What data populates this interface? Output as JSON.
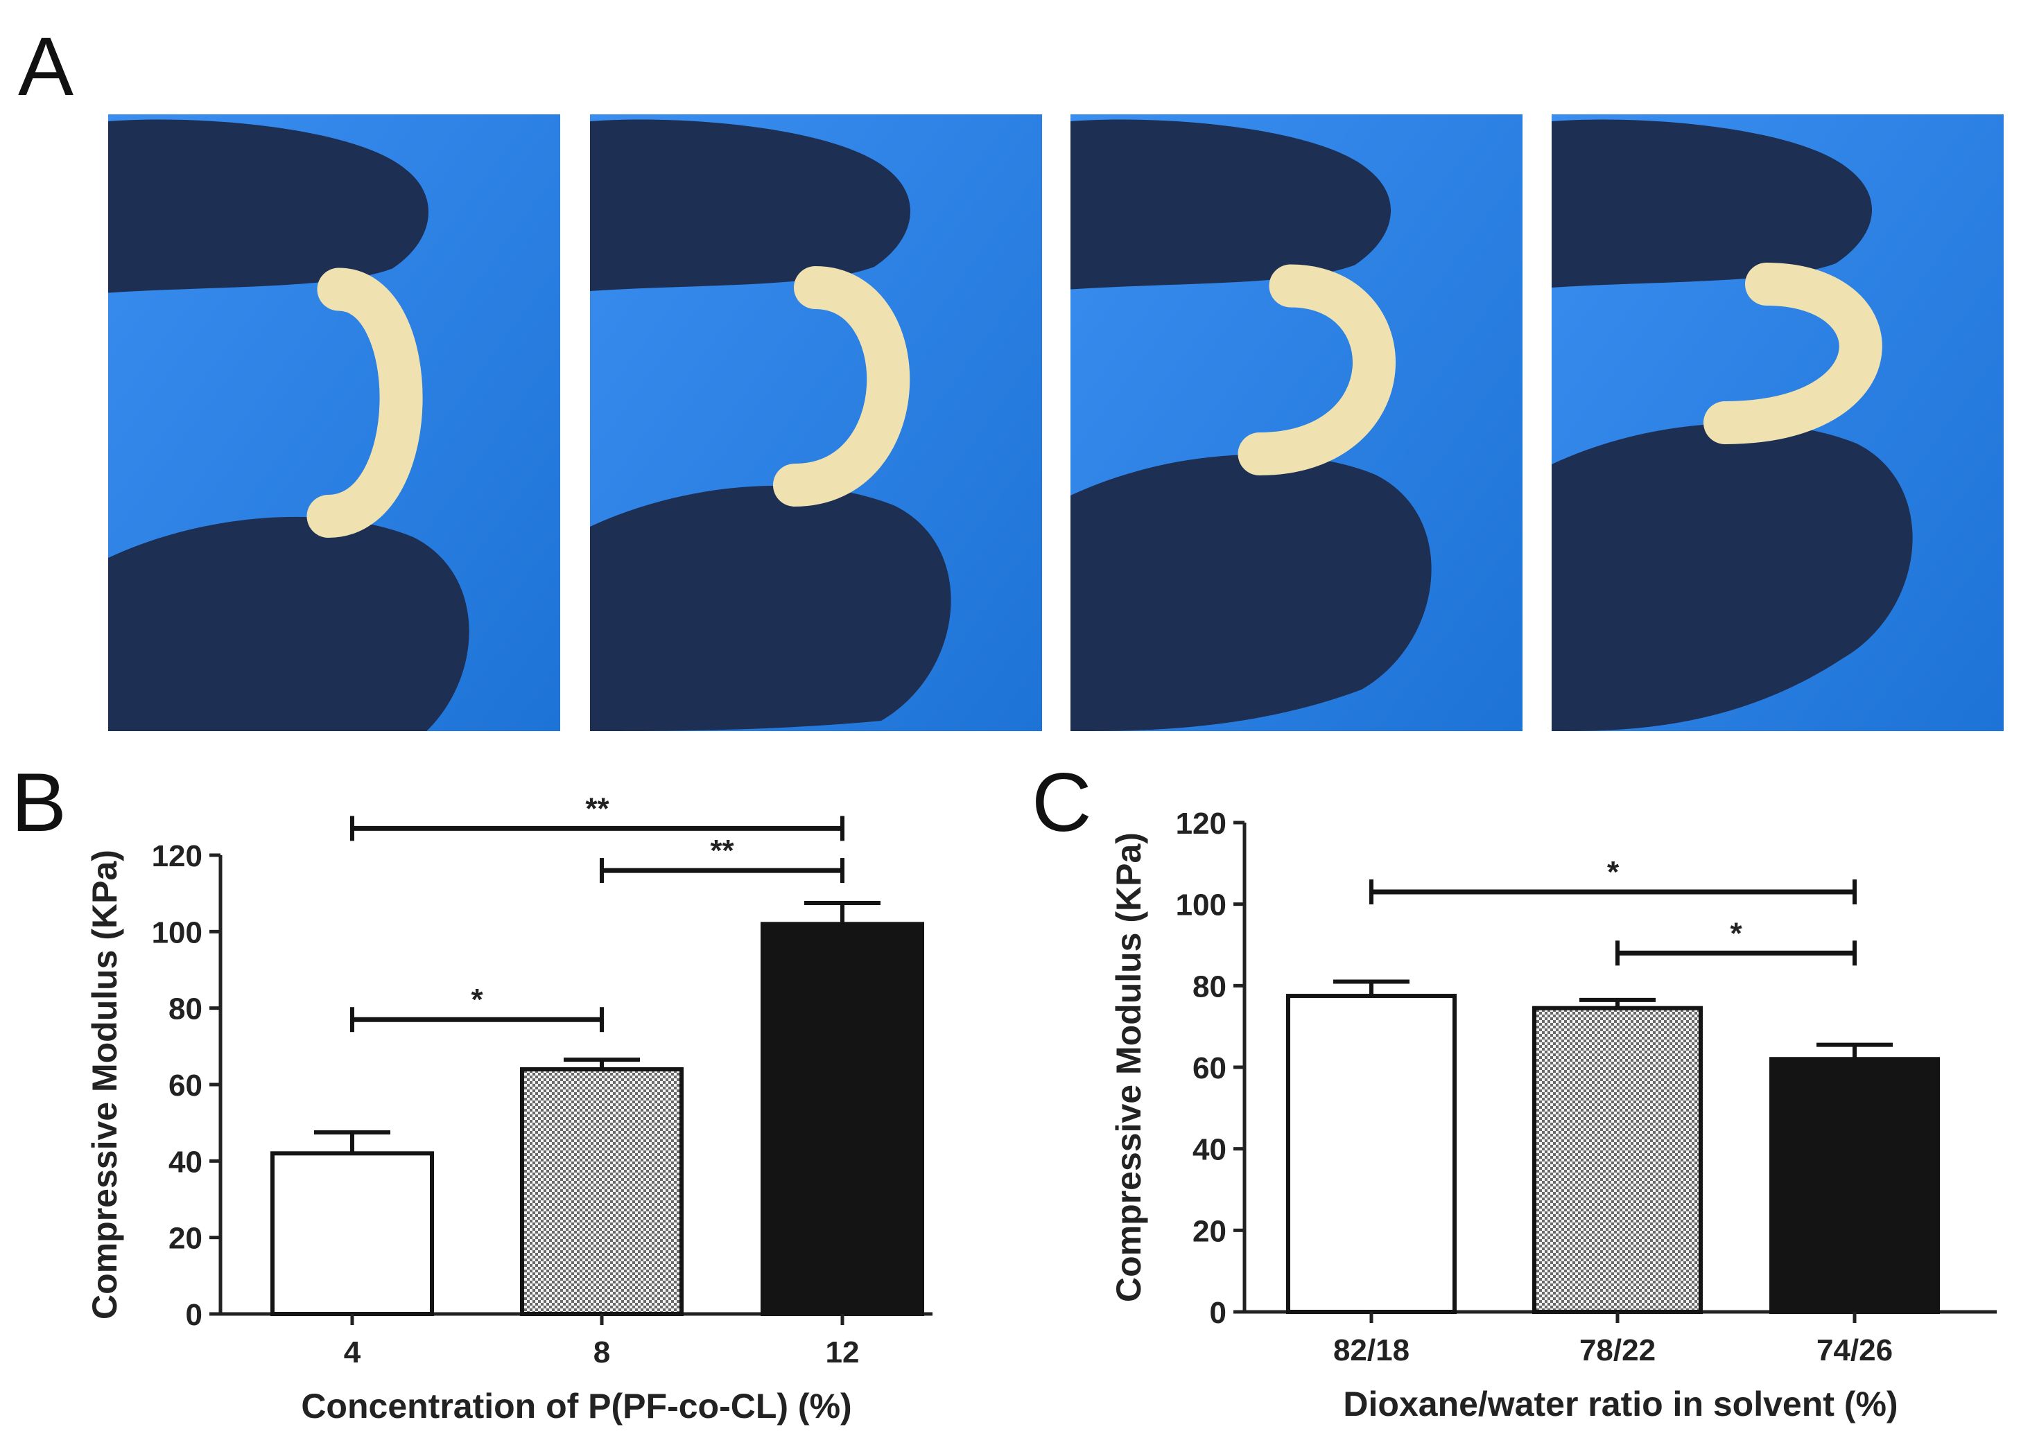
{
  "panels": {
    "a": "A",
    "b": "B",
    "c": "C"
  },
  "photos": [
    {
      "id": "photo-1",
      "bend": 0.25
    },
    {
      "id": "photo-2",
      "bend": 0.5
    },
    {
      "id": "photo-3",
      "bend": 0.75
    },
    {
      "id": "photo-4",
      "bend": 1.0
    }
  ],
  "colors": {
    "background_blue": "#1e73d6",
    "glove": "#1d2f52",
    "scaffold": "#efe2b0"
  },
  "chart_data": [
    {
      "type": "bar",
      "panel": "B",
      "categories": [
        "4",
        "8",
        "12"
      ],
      "values": [
        42,
        64,
        102
      ],
      "errors": [
        5.5,
        2.5,
        5.5
      ],
      "fills": [
        "white",
        "checker",
        "black"
      ],
      "xlabel": "Concentration of P(PF-co-CL)  (%)",
      "ylabel": "Compressive Modulus (KPa)",
      "ylim": [
        0,
        120
      ],
      "yticks": [
        0,
        20,
        40,
        60,
        80,
        100,
        120
      ],
      "significance": [
        {
          "from": 0,
          "to": 1,
          "y": 77,
          "label": "*"
        },
        {
          "from": 1,
          "to": 2,
          "y": 116,
          "label": "**"
        },
        {
          "from": 0,
          "to": 2,
          "y": 127,
          "label": "**"
        }
      ]
    },
    {
      "type": "bar",
      "panel": "C",
      "categories": [
        "82/18",
        "78/22",
        "74/26"
      ],
      "values": [
        77.5,
        74.5,
        62
      ],
      "errors": [
        3.5,
        2,
        3.5
      ],
      "fills": [
        "white",
        "checker",
        "black"
      ],
      "xlabel": "Dioxane/water ratio in solvent (%)",
      "ylabel": "Compressive Modulus (KPa)",
      "ylim": [
        0,
        120
      ],
      "yticks": [
        0,
        20,
        40,
        60,
        80,
        100,
        120
      ],
      "significance": [
        {
          "from": 1,
          "to": 2,
          "y": 88,
          "label": "*"
        },
        {
          "from": 0,
          "to": 2,
          "y": 103,
          "label": "*"
        }
      ]
    }
  ]
}
